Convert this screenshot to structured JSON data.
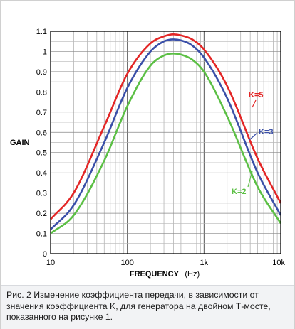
{
  "chart_data": {
    "type": "line",
    "xscale": "log",
    "xlim": [
      10,
      10000
    ],
    "ylim": [
      0,
      1.1
    ],
    "grid": true,
    "xlabel": "FREQUENCY",
    "xunit": "(Hz)",
    "ylabel": "GAIN",
    "x_tick_labels": [
      {
        "value": 10,
        "label": "10"
      },
      {
        "value": 100,
        "label": "100"
      },
      {
        "value": 1000,
        "label": "1k"
      },
      {
        "value": 10000,
        "label": "10k"
      }
    ],
    "y_tick_labels": [
      "0",
      "0.1",
      "0.2",
      "0.3",
      "0.4",
      "0.5",
      "0.6",
      "0.7",
      "0.8",
      "0.9",
      "1",
      "1.1"
    ],
    "x": [
      10,
      20,
      50,
      100,
      200,
      300,
      400,
      500,
      700,
      1000,
      2000,
      5000,
      10000
    ],
    "series": [
      {
        "name": "K=5",
        "color": "#e32626",
        "values": [
          0.17,
          0.3,
          0.63,
          0.89,
          1.04,
          1.075,
          1.085,
          1.08,
          1.06,
          1.01,
          0.83,
          0.47,
          0.25
        ]
      },
      {
        "name": "K=3",
        "color": "#3a4fa8",
        "values": [
          0.12,
          0.24,
          0.55,
          0.82,
          1.0,
          1.05,
          1.06,
          1.055,
          1.03,
          0.97,
          0.77,
          0.4,
          0.19
        ]
      },
      {
        "name": "K=2",
        "color": "#5bbf44",
        "values": [
          0.1,
          0.19,
          0.46,
          0.73,
          0.93,
          0.98,
          0.99,
          0.985,
          0.96,
          0.9,
          0.68,
          0.33,
          0.15
        ]
      }
    ]
  },
  "caption": "Рис. 2 Изменение коэффициента передачи, в зависимости от значения коэффициента K, для генератора на двойном Т-мосте, показанного на рисунке 1."
}
